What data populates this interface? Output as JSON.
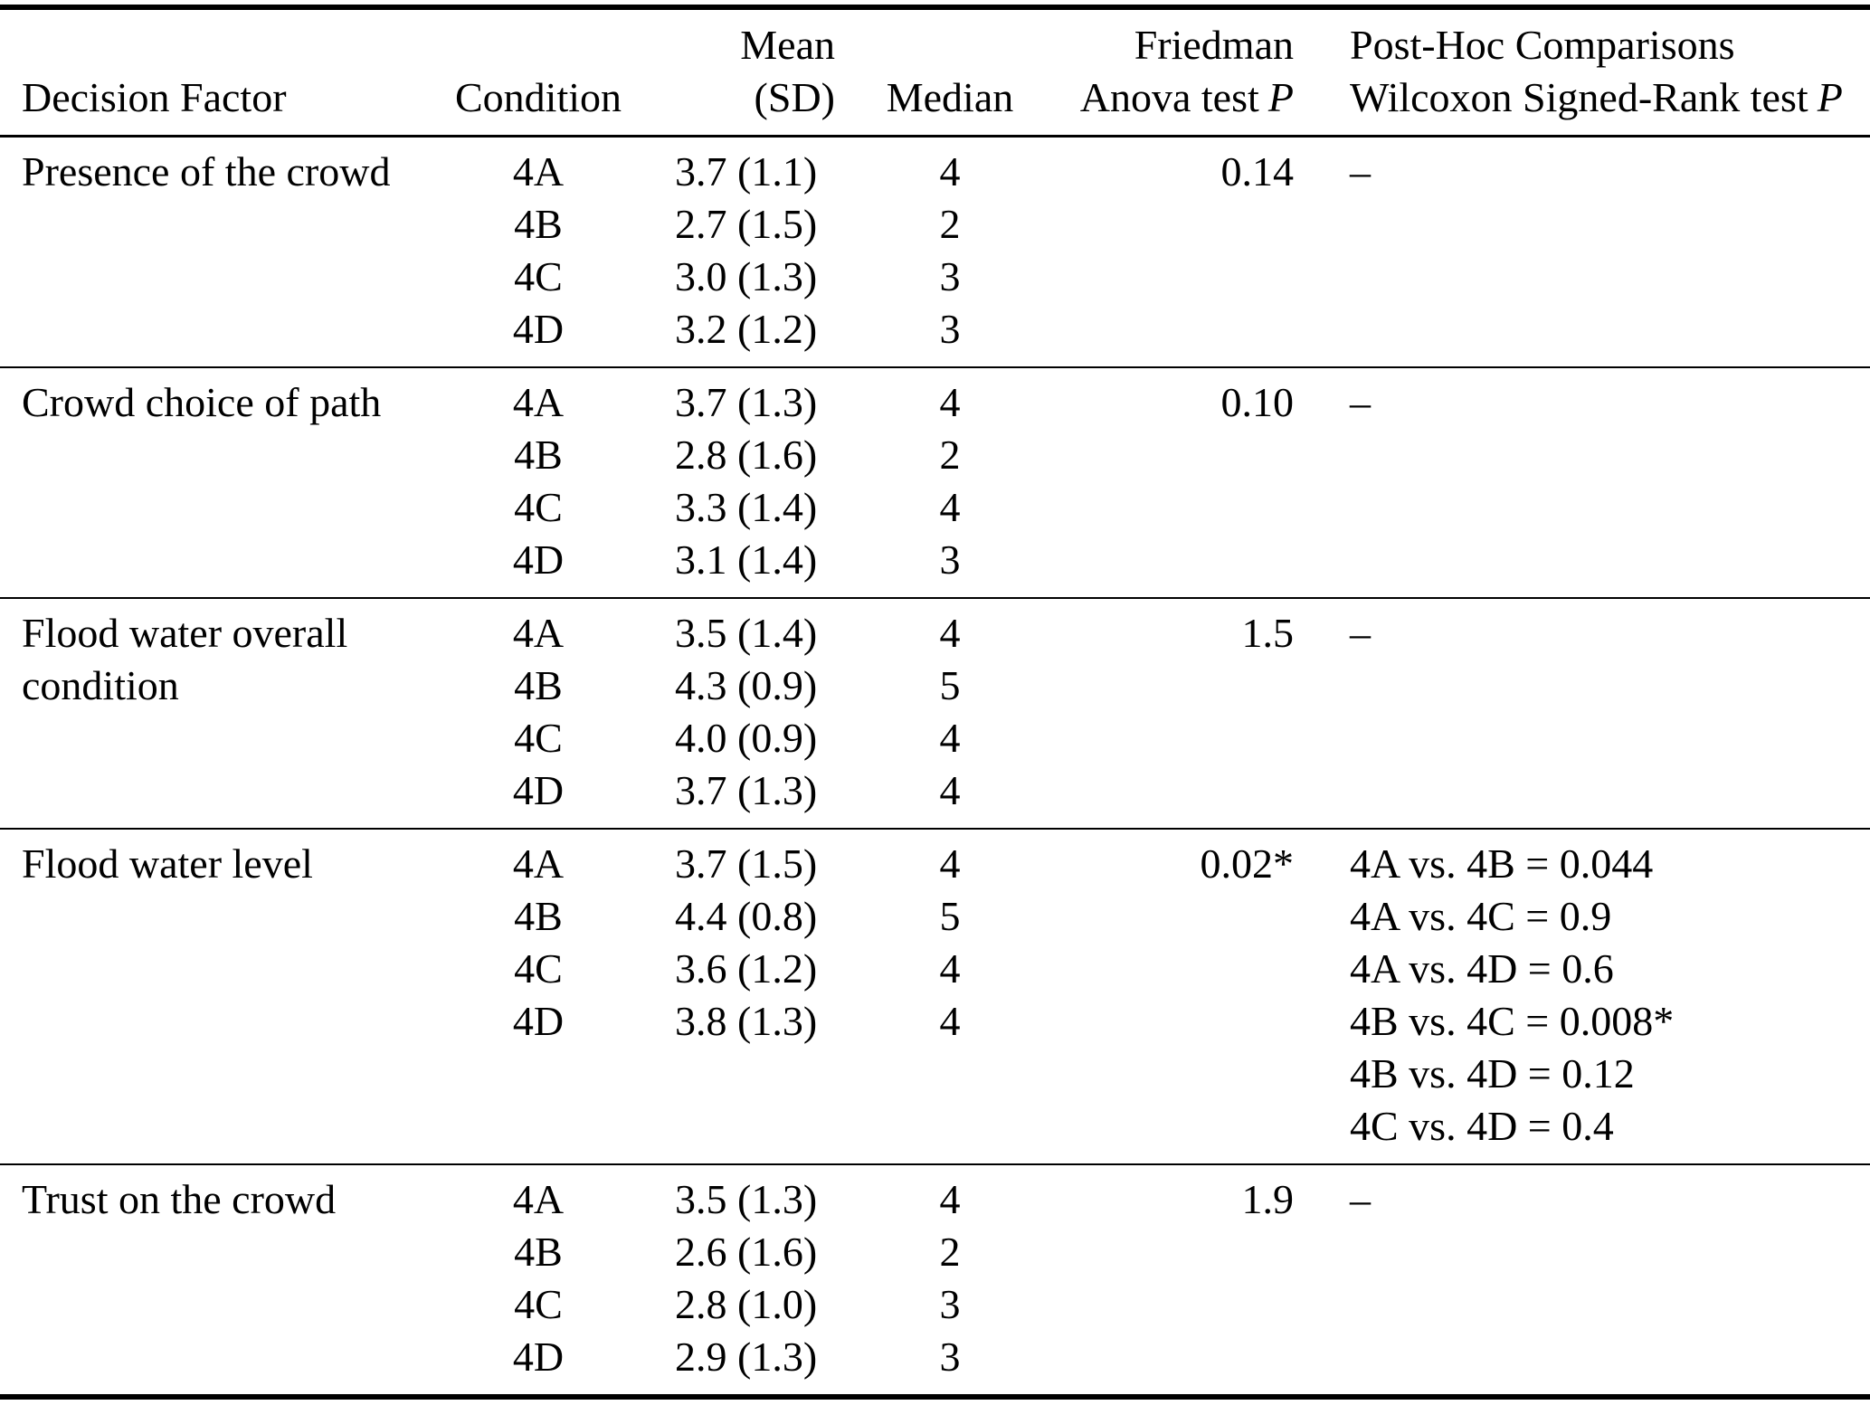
{
  "header": {
    "decision_factor": "Decision Factor",
    "condition": "Condition",
    "mean_line1": "Mean",
    "mean_line2": "(SD)",
    "median": "Median",
    "friedman_line1": "Friedman",
    "friedman_line2": "Anova test",
    "posthoc_line1": "Post-Hoc Comparisons",
    "posthoc_line2": "Wilcoxon Signed-Rank test",
    "p_symbol": "P"
  },
  "groups": [
    {
      "factor": "Presence of the crowd",
      "rows": [
        {
          "condition": "4A",
          "mean_sd": "3.7 (1.1)",
          "median": "4",
          "p": "0.14",
          "posthoc": "–"
        },
        {
          "condition": "4B",
          "mean_sd": "2.7 (1.5)",
          "median": "2",
          "p": "",
          "posthoc": ""
        },
        {
          "condition": "4C",
          "mean_sd": "3.0 (1.3)",
          "median": "3",
          "p": "",
          "posthoc": ""
        },
        {
          "condition": "4D",
          "mean_sd": "3.2 (1.2)",
          "median": "3",
          "p": "",
          "posthoc": ""
        }
      ]
    },
    {
      "factor": "Crowd choice of path",
      "rows": [
        {
          "condition": "4A",
          "mean_sd": "3.7 (1.3)",
          "median": "4",
          "p": "0.10",
          "posthoc": "–"
        },
        {
          "condition": "4B",
          "mean_sd": "2.8 (1.6)",
          "median": "2",
          "p": "",
          "posthoc": ""
        },
        {
          "condition": "4C",
          "mean_sd": "3.3 (1.4)",
          "median": "4",
          "p": "",
          "posthoc": ""
        },
        {
          "condition": "4D",
          "mean_sd": "3.1 (1.4)",
          "median": "3",
          "p": "",
          "posthoc": ""
        }
      ]
    },
    {
      "factor": "Flood water overall condition",
      "rows": [
        {
          "condition": "4A",
          "mean_sd": "3.5 (1.4)",
          "median": "4",
          "p": "1.5",
          "posthoc": "–"
        },
        {
          "condition": "4B",
          "mean_sd": "4.3 (0.9)",
          "median": "5",
          "p": "",
          "posthoc": ""
        },
        {
          "condition": "4C",
          "mean_sd": "4.0 (0.9)",
          "median": "4",
          "p": "",
          "posthoc": ""
        },
        {
          "condition": "4D",
          "mean_sd": "3.7 (1.3)",
          "median": "4",
          "p": "",
          "posthoc": ""
        }
      ]
    },
    {
      "factor": "Flood water level",
      "rows": [
        {
          "condition": "4A",
          "mean_sd": "3.7 (1.5)",
          "median": "4",
          "p": "0.02*",
          "posthoc": "4A vs. 4B = 0.044"
        },
        {
          "condition": "4B",
          "mean_sd": "4.4 (0.8)",
          "median": "5",
          "p": "",
          "posthoc": "4A vs. 4C = 0.9"
        },
        {
          "condition": "4C",
          "mean_sd": "3.6 (1.2)",
          "median": "4",
          "p": "",
          "posthoc": "4A vs. 4D = 0.6"
        },
        {
          "condition": "4D",
          "mean_sd": "3.8 (1.3)",
          "median": "4",
          "p": "",
          "posthoc": "4B vs. 4C = 0.008*"
        },
        {
          "condition": "",
          "mean_sd": "",
          "median": "",
          "p": "",
          "posthoc": "4B vs. 4D = 0.12"
        },
        {
          "condition": "",
          "mean_sd": "",
          "median": "",
          "p": "",
          "posthoc": "4C vs. 4D = 0.4"
        }
      ]
    },
    {
      "factor": "Trust on the crowd",
      "rows": [
        {
          "condition": "4A",
          "mean_sd": "3.5 (1.3)",
          "median": "4",
          "p": "1.9",
          "posthoc": "–"
        },
        {
          "condition": "4B",
          "mean_sd": "2.6 (1.6)",
          "median": "2",
          "p": "",
          "posthoc": ""
        },
        {
          "condition": "4C",
          "mean_sd": "2.8 (1.0)",
          "median": "3",
          "p": "",
          "posthoc": ""
        },
        {
          "condition": "4D",
          "mean_sd": "2.9 (1.3)",
          "median": "3",
          "p": "",
          "posthoc": ""
        }
      ]
    }
  ]
}
